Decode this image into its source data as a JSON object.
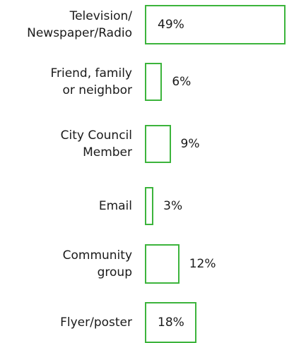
{
  "chart_data": {
    "type": "bar",
    "orientation": "horizontal",
    "categories": [
      "Television/\nNewspaper/Radio",
      "Friend, family\nor neighbor",
      "City Council\nMember",
      "Email",
      "Community\ngroup",
      "Flyer/poster"
    ],
    "values": [
      49,
      6,
      9,
      3,
      12,
      18
    ],
    "value_labels": [
      "49%",
      "6%",
      "9%",
      "3%",
      "12%",
      "18%"
    ],
    "bar_style": "outline",
    "bar_color": "#3cb43c",
    "value_label_placement": "inside-if-fits",
    "title": "",
    "xlabel": "",
    "ylabel": "",
    "grid": false
  }
}
